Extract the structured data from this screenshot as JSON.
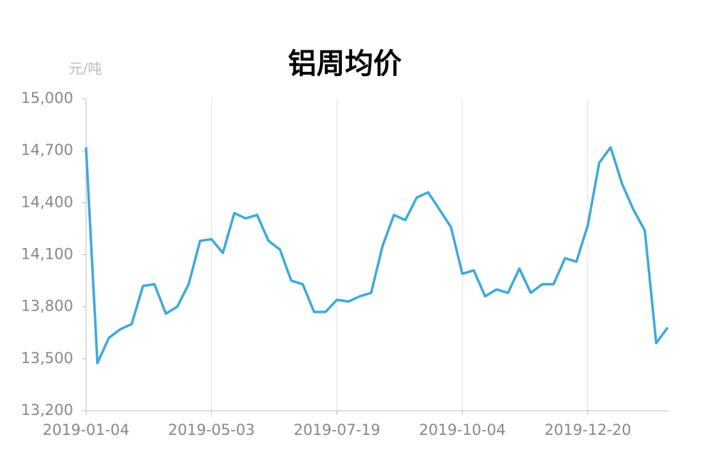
{
  "chart_data": {
    "type": "line",
    "title": "铝周均价",
    "y_unit_label": "元/吨",
    "categories": [
      "2019-01-04",
      null,
      null,
      null,
      null,
      null,
      null,
      null,
      null,
      null,
      null,
      "2019-05-03",
      null,
      null,
      null,
      null,
      null,
      null,
      null,
      null,
      null,
      null,
      "2019-07-19",
      null,
      null,
      null,
      null,
      null,
      null,
      null,
      null,
      null,
      null,
      "2019-10-04",
      null,
      null,
      null,
      null,
      null,
      null,
      null,
      null,
      null,
      null,
      "2019-12-20",
      null,
      null,
      null,
      null,
      null,
      null,
      null
    ],
    "series": [
      {
        "name": "铝周均价",
        "color": "#3ea9dc",
        "values": [
          14720,
          13475,
          13620,
          13670,
          13700,
          13920,
          13930,
          13760,
          13800,
          13930,
          14180,
          14190,
          14110,
          14340,
          14310,
          14330,
          14180,
          14130,
          13950,
          13930,
          13770,
          13770,
          13840,
          13830,
          13860,
          13880,
          14150,
          14330,
          14300,
          14430,
          14460,
          14360,
          14260,
          13990,
          14010,
          13860,
          13900,
          13880,
          14020,
          13880,
          13930,
          13930,
          14080,
          14060,
          14270,
          14630,
          14720,
          14510,
          14360,
          14240,
          13590,
          13680
        ]
      }
    ],
    "ylim": [
      13200,
      15000
    ],
    "yticks": [
      {
        "value": 13200,
        "label": "13,200"
      },
      {
        "value": 13500,
        "label": "13,500"
      },
      {
        "value": 13800,
        "label": "13,800"
      },
      {
        "value": 14100,
        "label": "14,100"
      },
      {
        "value": 14400,
        "label": "14,400"
      },
      {
        "value": 14700,
        "label": "14,700"
      },
      {
        "value": 15000,
        "label": "15,000"
      }
    ],
    "xgrid": true
  }
}
